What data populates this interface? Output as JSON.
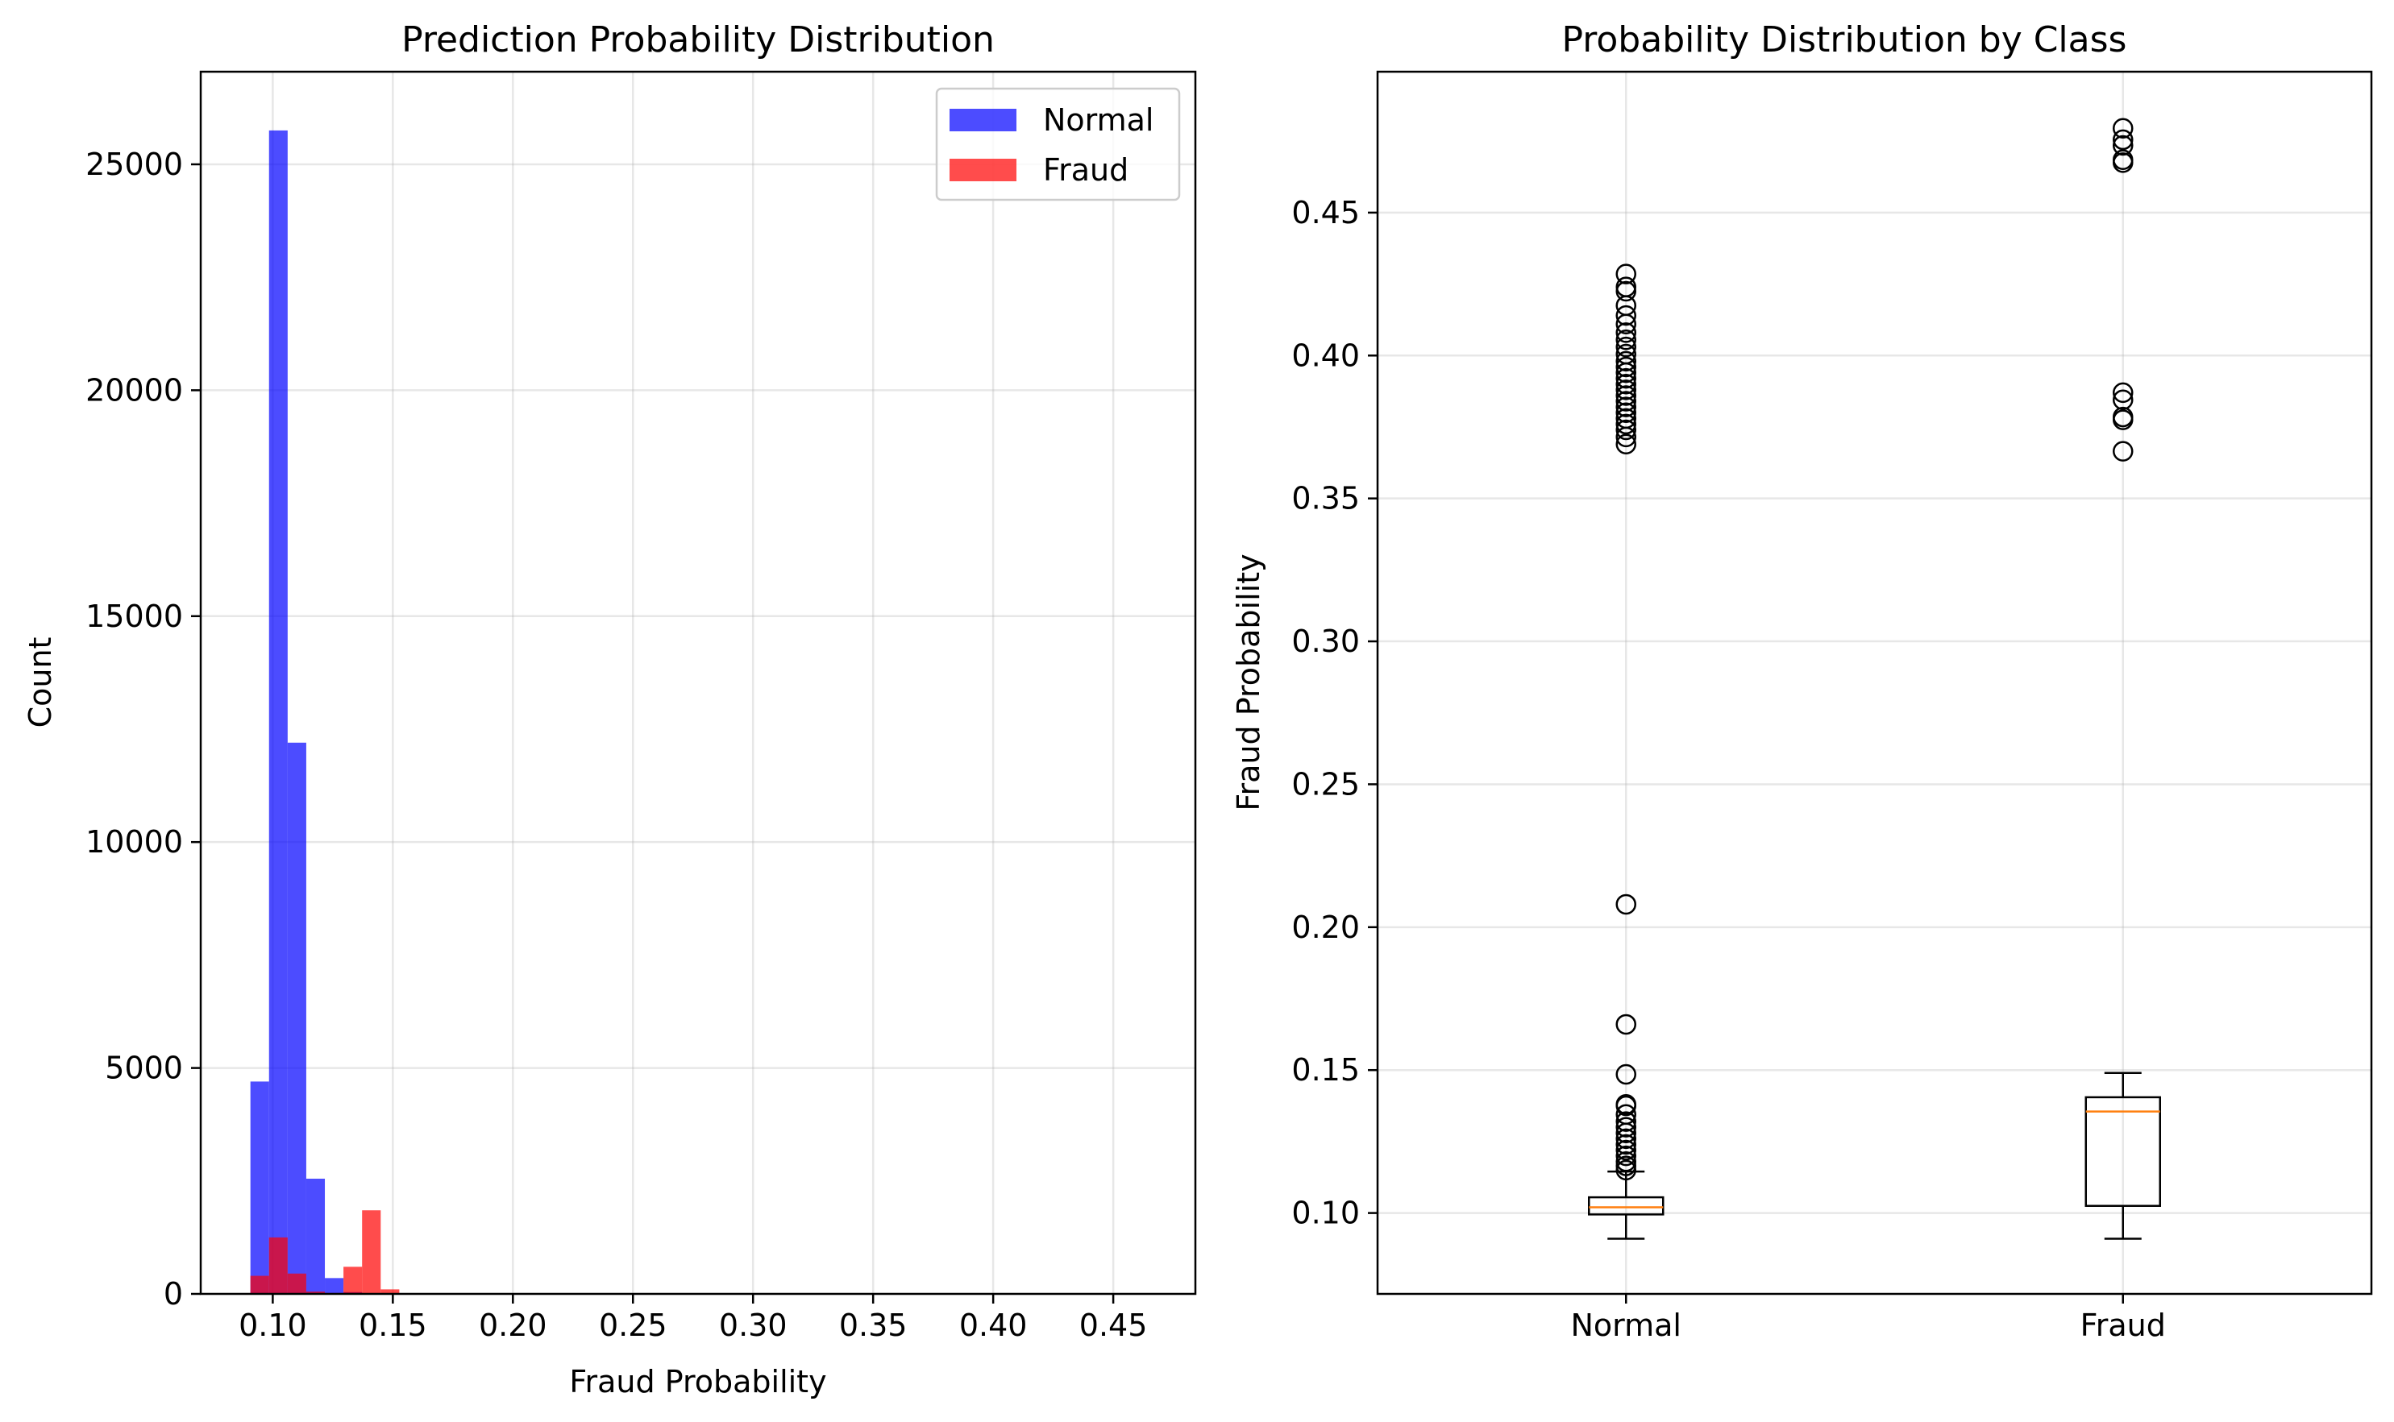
{
  "chart_data": [
    {
      "type": "histogram",
      "title": "Prediction Probability Distribution",
      "xlabel": "Fraud Probability",
      "ylabel": "Count",
      "xlim": [
        0.07,
        0.4842
      ],
      "ylim": [
        0,
        27050
      ],
      "xticks": [
        "0.10",
        "0.15",
        "0.20",
        "0.25",
        "0.30",
        "0.35",
        "0.40",
        "0.45"
      ],
      "xtick_values": [
        0.1,
        0.15,
        0.2,
        0.25,
        0.3,
        0.35,
        0.4,
        0.45
      ],
      "yticks": [
        "0",
        "5000",
        "10000",
        "15000",
        "20000",
        "25000"
      ],
      "ytick_values": [
        0,
        5000,
        10000,
        15000,
        20000,
        25000
      ],
      "grid": true,
      "legend_position": "upper right",
      "bin_width": 0.00775,
      "series": [
        {
          "name": "Normal",
          "color": "#0000ff",
          "opacity": 0.7,
          "bins": [
            {
              "start": 0.0907,
              "count": 4700
            },
            {
              "start": 0.09845,
              "count": 25750
            },
            {
              "start": 0.1062,
              "count": 12200
            },
            {
              "start": 0.11395,
              "count": 2550
            },
            {
              "start": 0.1217,
              "count": 350
            },
            {
              "start": 0.12945,
              "count": 40
            }
          ]
        },
        {
          "name": "Fraud",
          "color": "#ff0000",
          "opacity": 0.7,
          "bins": [
            {
              "start": 0.0907,
              "count": 400
            },
            {
              "start": 0.09845,
              "count": 1250
            },
            {
              "start": 0.1062,
              "count": 450
            },
            {
              "start": 0.11395,
              "count": 50
            },
            {
              "start": 0.1217,
              "count": 20
            },
            {
              "start": 0.12945,
              "count": 600
            },
            {
              "start": 0.1372,
              "count": 1850
            },
            {
              "start": 0.14495,
              "count": 100
            }
          ]
        }
      ]
    },
    {
      "type": "boxplot",
      "title": "Probability Distribution by Class",
      "xlabel": "",
      "ylabel": "Fraud Probability",
      "categories": [
        "Normal",
        "Fraud"
      ],
      "ylim": [
        0.0717,
        0.4993
      ],
      "yticks": [
        "0.10",
        "0.15",
        "0.20",
        "0.25",
        "0.30",
        "0.35",
        "0.40",
        "0.45"
      ],
      "ytick_values": [
        0.1,
        0.15,
        0.2,
        0.25,
        0.3,
        0.35,
        0.4,
        0.45
      ],
      "grid": true,
      "median_color": "#ff7f0e",
      "boxes": [
        {
          "name": "Normal",
          "whisker_low": 0.091,
          "q1": 0.0995,
          "median": 0.102,
          "q3": 0.1055,
          "whisker_high": 0.1145,
          "outliers": [
            0.4285,
            0.424,
            0.4225,
            0.4175,
            0.414,
            0.411,
            0.408,
            0.4055,
            0.403,
            0.4005,
            0.398,
            0.396,
            0.394,
            0.392,
            0.39,
            0.388,
            0.386,
            0.384,
            0.382,
            0.38,
            0.378,
            0.376,
            0.374,
            0.3715,
            0.369,
            0.208,
            0.166,
            0.1485,
            0.138,
            0.1375,
            0.1345,
            0.132,
            0.13,
            0.128,
            0.126,
            0.124,
            0.122,
            0.12,
            0.118,
            0.1165,
            0.115
          ]
        },
        {
          "name": "Fraud",
          "whisker_low": 0.091,
          "q1": 0.1025,
          "median": 0.1355,
          "q3": 0.1405,
          "whisker_high": 0.149,
          "outliers": [
            0.4795,
            0.4755,
            0.4735,
            0.4685,
            0.4675,
            0.387,
            0.3845,
            0.3785,
            0.3775,
            0.3665
          ]
        }
      ]
    }
  ]
}
